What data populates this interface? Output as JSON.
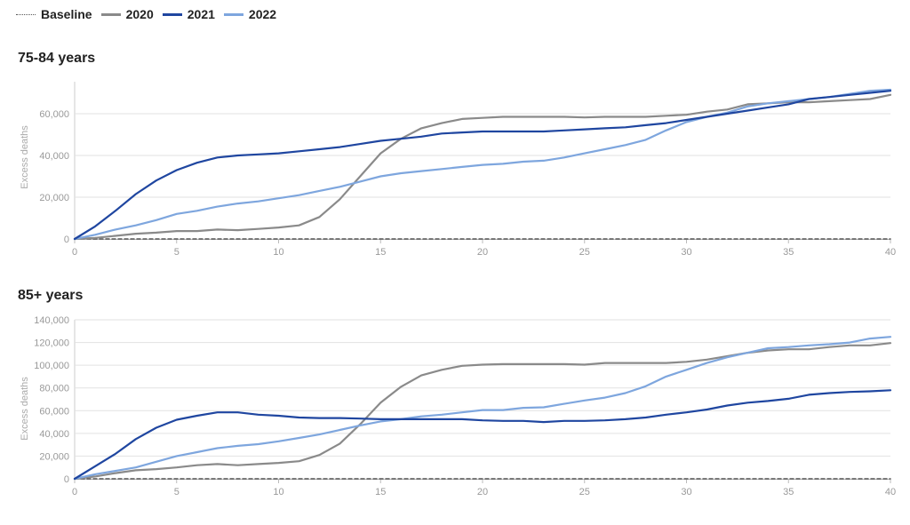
{
  "legend": [
    {
      "label": "Baseline",
      "color": "#555555",
      "dashed": true
    },
    {
      "label": "2020",
      "color": "#8a8a8a",
      "dashed": false
    },
    {
      "label": "2021",
      "color": "#1f46a0",
      "dashed": false
    },
    {
      "label": "2022",
      "color": "#7ea6de",
      "dashed": false
    }
  ],
  "panels": [
    {
      "title": "75-84 years",
      "ylabel": "Excess deaths"
    },
    {
      "title": "85+ years",
      "ylabel": "Excess deaths"
    }
  ],
  "chart_data": [
    {
      "type": "line",
      "title": "75-84 years",
      "xlabel": "",
      "ylabel": "Excess deaths",
      "xlim": [
        0,
        40
      ],
      "ylim": [
        -2000,
        72000
      ],
      "xticks": [
        0,
        5,
        10,
        15,
        20,
        25,
        30,
        35,
        40
      ],
      "yticks": [
        0,
        20000,
        40000,
        60000
      ],
      "ytick_labels": [
        "0",
        "20,000",
        "40,000",
        "60,000"
      ],
      "grid": true,
      "legend_position": "top-left",
      "x": [
        0,
        1,
        2,
        3,
        4,
        5,
        6,
        7,
        8,
        9,
        10,
        11,
        12,
        13,
        14,
        15,
        16,
        17,
        18,
        19,
        20,
        21,
        22,
        23,
        24,
        25,
        26,
        27,
        28,
        29,
        30,
        31,
        32,
        33,
        34,
        35,
        36,
        37,
        38,
        39,
        40
      ],
      "series": [
        {
          "name": "Baseline",
          "color": "#555555",
          "dashed": true,
          "values": [
            0,
            0,
            0,
            0,
            0,
            0,
            0,
            0,
            0,
            0,
            0,
            0,
            0,
            0,
            0,
            0,
            0,
            0,
            0,
            0,
            0,
            0,
            0,
            0,
            0,
            0,
            0,
            0,
            0,
            0,
            0,
            0,
            0,
            0,
            0,
            0,
            0,
            0,
            0,
            0,
            0
          ]
        },
        {
          "name": "2020",
          "color": "#8a8a8a",
          "dashed": false,
          "values": [
            0,
            500,
            1500,
            2500,
            3000,
            3800,
            3800,
            4500,
            4200,
            4800,
            5500,
            6500,
            10500,
            19000,
            30000,
            41000,
            48000,
            53000,
            55500,
            57500,
            58000,
            58500,
            58500,
            58500,
            58500,
            58200,
            58500,
            58500,
            58500,
            59000,
            59500,
            61000,
            62000,
            64500,
            65000,
            65500,
            65500,
            66000,
            66500,
            67000,
            69000
          ]
        },
        {
          "name": "2021",
          "color": "#1f46a0",
          "dashed": false,
          "values": [
            0,
            6000,
            13500,
            21500,
            28000,
            33000,
            36500,
            39000,
            40000,
            40500,
            41000,
            42000,
            43000,
            44000,
            45500,
            47000,
            48000,
            49000,
            50500,
            51000,
            51500,
            51500,
            51500,
            51500,
            52000,
            52500,
            53000,
            53500,
            54500,
            55500,
            57000,
            58500,
            60000,
            61500,
            63000,
            64500,
            67000,
            68000,
            69000,
            70000,
            71000
          ]
        },
        {
          "name": "2022",
          "color": "#7ea6de",
          "dashed": false,
          "values": [
            0,
            2000,
            4500,
            6500,
            9000,
            12000,
            13500,
            15500,
            17000,
            18000,
            19500,
            21000,
            23000,
            25000,
            27500,
            30000,
            31500,
            32500,
            33500,
            34500,
            35500,
            36000,
            37000,
            37500,
            39000,
            41000,
            43000,
            45000,
            47500,
            52000,
            56000,
            58500,
            60500,
            63500,
            65000,
            66000,
            67000,
            68000,
            69500,
            71000,
            71500
          ]
        }
      ]
    },
    {
      "type": "line",
      "title": "85+ years",
      "xlabel": "",
      "ylabel": "Excess deaths",
      "xlim": [
        0,
        40
      ],
      "ylim": [
        -2000,
        143000
      ],
      "xticks": [
        0,
        5,
        10,
        15,
        20,
        25,
        30,
        35,
        40
      ],
      "yticks": [
        0,
        20000,
        40000,
        60000,
        80000,
        100000,
        120000,
        140000
      ],
      "ytick_labels": [
        "0",
        "20,000",
        "40,000",
        "60,000",
        "80,000",
        "100,000",
        "120,000",
        "140,000"
      ],
      "grid": true,
      "legend_position": "top-left",
      "x": [
        0,
        1,
        2,
        3,
        4,
        5,
        6,
        7,
        8,
        9,
        10,
        11,
        12,
        13,
        14,
        15,
        16,
        17,
        18,
        19,
        20,
        21,
        22,
        23,
        24,
        25,
        26,
        27,
        28,
        29,
        30,
        31,
        32,
        33,
        34,
        35,
        36,
        37,
        38,
        39,
        40
      ],
      "series": [
        {
          "name": "Baseline",
          "color": "#555555",
          "dashed": true,
          "values": [
            0,
            0,
            0,
            0,
            0,
            0,
            0,
            0,
            0,
            0,
            0,
            0,
            0,
            0,
            0,
            0,
            0,
            0,
            0,
            0,
            0,
            0,
            0,
            0,
            0,
            0,
            0,
            0,
            0,
            0,
            0,
            0,
            0,
            0,
            0,
            0,
            0,
            0,
            0,
            0,
            0
          ]
        },
        {
          "name": "2020",
          "color": "#8a8a8a",
          "dashed": false,
          "values": [
            0,
            2000,
            5000,
            7500,
            8500,
            10000,
            12000,
            13000,
            12000,
            13000,
            14000,
            15500,
            21000,
            31000,
            48000,
            67000,
            81000,
            91000,
            96000,
            99500,
            100500,
            101000,
            101000,
            101000,
            101000,
            100500,
            102000,
            102000,
            102000,
            102000,
            103000,
            105000,
            108000,
            111000,
            113000,
            114000,
            114000,
            116000,
            117500,
            117500,
            119500
          ]
        },
        {
          "name": "2021",
          "color": "#1f46a0",
          "dashed": false,
          "values": [
            0,
            11000,
            22000,
            35000,
            45000,
            52000,
            55500,
            58500,
            58500,
            56500,
            55500,
            54000,
            53500,
            53500,
            53000,
            52500,
            52500,
            52500,
            52500,
            52500,
            51500,
            51000,
            51000,
            50000,
            51000,
            51000,
            51500,
            52500,
            54000,
            56500,
            58500,
            61000,
            64500,
            67000,
            68500,
            70500,
            74000,
            75500,
            76500,
            77000,
            78000
          ]
        },
        {
          "name": "2022",
          "color": "#7ea6de",
          "dashed": false,
          "values": [
            0,
            4000,
            7000,
            10000,
            15000,
            20000,
            23500,
            27000,
            29000,
            30500,
            33000,
            36000,
            39000,
            43000,
            47000,
            50500,
            52500,
            55000,
            56500,
            58500,
            60500,
            60500,
            62500,
            63000,
            66000,
            69000,
            71500,
            75500,
            81500,
            90000,
            96000,
            102000,
            107000,
            111000,
            115000,
            116000,
            117500,
            118500,
            120000,
            123500,
            125000
          ]
        }
      ]
    }
  ]
}
